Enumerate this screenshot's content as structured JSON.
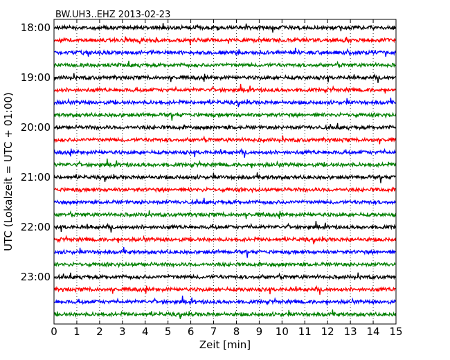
{
  "chart_data": {
    "type": "line",
    "title": "BW.UH3..EHZ 2013-02-23",
    "xlabel": "Zeit  [min]",
    "ylabel": "UTC (Lokalzeit = UTC + 01:00)",
    "xlim": [
      0,
      15
    ],
    "x_ticks": [
      "0",
      "1",
      "2",
      "3",
      "4",
      "5",
      "6",
      "7",
      "8",
      "9",
      "10",
      "11",
      "12",
      "13",
      "14",
      "15"
    ],
    "y_tick_labels": [
      "18:00",
      "19:00",
      "20:00",
      "21:00",
      "22:00",
      "23:00"
    ],
    "trace_interval_min": 15,
    "start_time": "18:00",
    "end_time": "23:45",
    "grid": "vertical dotted every minute",
    "color_cycle": [
      "#000000",
      "#ff0000",
      "#0000ff",
      "#008000"
    ],
    "series": [
      {
        "start": "18:00",
        "color": "#000000"
      },
      {
        "start": "18:15",
        "color": "#ff0000"
      },
      {
        "start": "18:30",
        "color": "#0000ff"
      },
      {
        "start": "18:45",
        "color": "#008000"
      },
      {
        "start": "19:00",
        "color": "#000000"
      },
      {
        "start": "19:15",
        "color": "#ff0000"
      },
      {
        "start": "19:30",
        "color": "#0000ff"
      },
      {
        "start": "19:45",
        "color": "#008000"
      },
      {
        "start": "20:00",
        "color": "#000000"
      },
      {
        "start": "20:15",
        "color": "#ff0000"
      },
      {
        "start": "20:30",
        "color": "#0000ff"
      },
      {
        "start": "20:45",
        "color": "#008000"
      },
      {
        "start": "21:00",
        "color": "#000000"
      },
      {
        "start": "21:15",
        "color": "#ff0000"
      },
      {
        "start": "21:30",
        "color": "#0000ff"
      },
      {
        "start": "21:45",
        "color": "#008000"
      },
      {
        "start": "22:00",
        "color": "#000000"
      },
      {
        "start": "22:15",
        "color": "#ff0000"
      },
      {
        "start": "22:30",
        "color": "#0000ff"
      },
      {
        "start": "22:45",
        "color": "#008000"
      },
      {
        "start": "23:00",
        "color": "#000000"
      },
      {
        "start": "23:15",
        "color": "#ff0000"
      },
      {
        "start": "23:30",
        "color": "#0000ff"
      },
      {
        "start": "23:45",
        "color": "#008000"
      }
    ]
  }
}
